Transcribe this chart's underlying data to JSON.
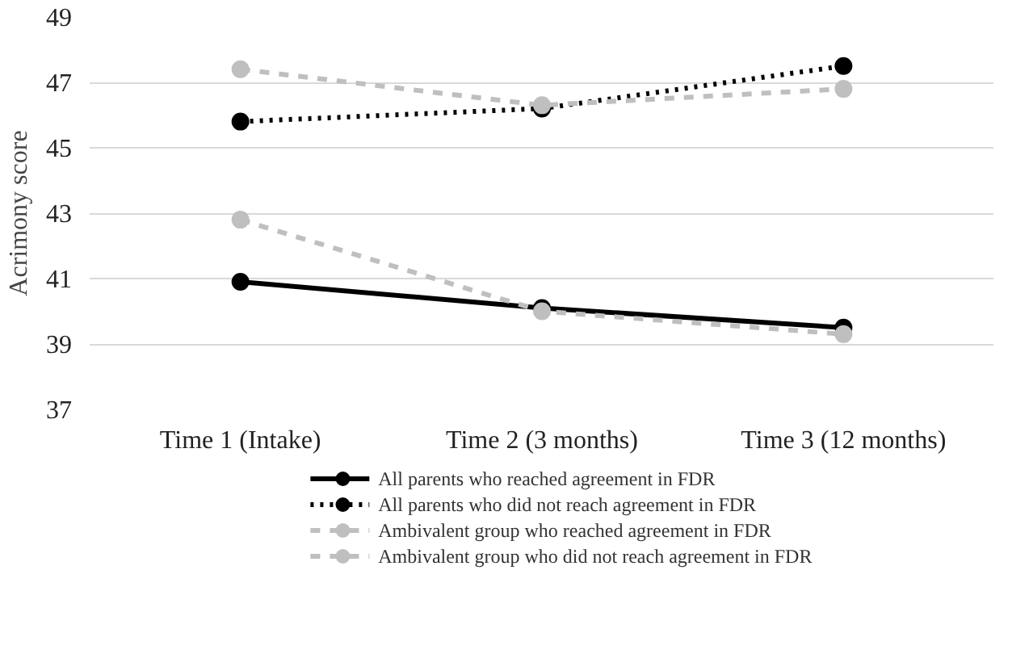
{
  "chart_data": {
    "type": "line",
    "ylabel": "Acrimony score",
    "categories": [
      "Time 1 (Intake)",
      "Time 2 (3 months)",
      "Time 3 (12 months)"
    ],
    "ylim": [
      37,
      49
    ],
    "yticks": [
      37,
      39,
      41,
      43,
      45,
      47,
      49
    ],
    "grid": "y",
    "legend": "bottom",
    "marker": "circle",
    "series": [
      {
        "name": "All parents who reached agreement in FDR",
        "color": "#000000",
        "line_style": "solid",
        "values": [
          40.9,
          40.1,
          39.5
        ]
      },
      {
        "name": "All parents who did not reach agreement in FDR",
        "color": "#000000",
        "line_style": "dotted",
        "values": [
          45.8,
          46.2,
          47.5
        ]
      },
      {
        "name": "Ambivalent group who reached agreement in FDR",
        "color": "#bfbfbf",
        "line_style": "dashed",
        "values": [
          42.8,
          40.0,
          39.3
        ]
      },
      {
        "name": "Ambivalent group who did not reach agreement in FDR",
        "color": "#bfbfbf",
        "line_style": "dashed",
        "values": [
          47.4,
          46.3,
          46.8
        ]
      }
    ]
  }
}
